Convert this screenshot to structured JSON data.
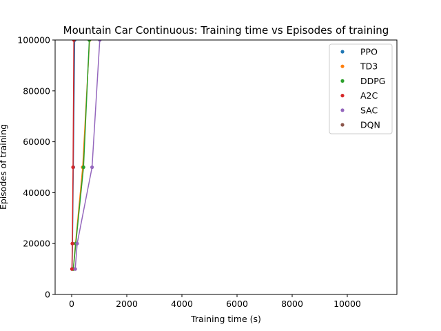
{
  "chart_data": {
    "type": "line",
    "title": "Mountain Car Continuous: Training time vs Episodes of training",
    "xlabel": "Training time (s)",
    "ylabel": "Episodes of training",
    "xlim": [
      -600,
      11800
    ],
    "ylim": [
      0,
      100000
    ],
    "x_ticks": [
      0,
      2000,
      4000,
      6000,
      8000,
      10000
    ],
    "y_ticks": [
      0,
      20000,
      40000,
      60000,
      80000,
      100000
    ],
    "x_tick_labels": [
      "0",
      "2000",
      "4000",
      "6000",
      "8000",
      "10000"
    ],
    "y_tick_labels": [
      "0",
      "20000",
      "40000",
      "60000",
      "80000",
      "100000"
    ],
    "legend_position": "top-right",
    "grid": false,
    "series": [
      {
        "name": "PPO",
        "color": "#1f77b4",
        "x": [
          15,
          30,
          60,
          110
        ],
        "y": [
          10000,
          20000,
          50000,
          100000
        ]
      },
      {
        "name": "TD3",
        "color": "#ff7f0e",
        "x": [
          60,
          140,
          400,
          650
        ],
        "y": [
          10000,
          20000,
          50000,
          100000
        ]
      },
      {
        "name": "DDPG",
        "color": "#2ca02c",
        "x": [
          60,
          150,
          430,
          640
        ],
        "y": [
          10000,
          20000,
          50000,
          100000
        ]
      },
      {
        "name": "A2C",
        "color": "#d62728",
        "x": [
          10,
          25,
          50,
          80
        ],
        "y": [
          10000,
          20000,
          50000,
          100000
        ]
      },
      {
        "name": "SAC",
        "color": "#9467bd",
        "x": [
          130,
          200,
          740,
          1020
        ],
        "y": [
          10000,
          20000,
          50000,
          100000
        ]
      },
      {
        "name": "DQN",
        "color": "#8c564b",
        "x": [],
        "y": []
      }
    ]
  }
}
